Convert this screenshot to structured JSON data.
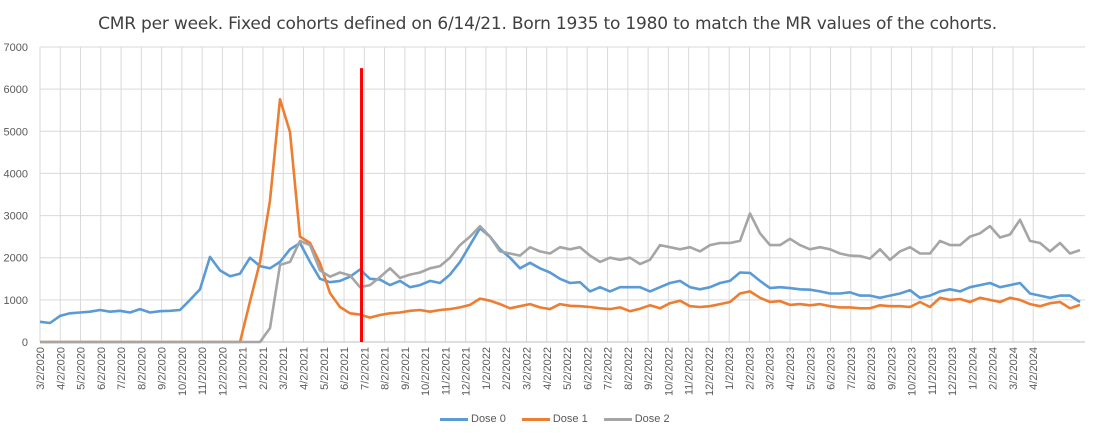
{
  "chart_data": {
    "type": "line",
    "title": "CMR per week. Fixed cohorts defined on 6/14/21. Born 1935 to 1980 to match the MR values of the cohorts.",
    "xlabel": "",
    "ylabel": "",
    "ylim": [
      0,
      7000
    ],
    "yticks": [
      0,
      1000,
      2000,
      3000,
      4000,
      5000,
      6000,
      7000
    ],
    "grid": true,
    "legend_position": "bottom",
    "x_unit": "weeks since 3/2/2020",
    "x_range_weeks": [
      0,
      224
    ],
    "weeks_per_label": 4.35,
    "x_tick_labels": [
      "3/2/2020",
      "4/2/2020",
      "5/2/2020",
      "6/2/2020",
      "7/2/2020",
      "8/2/2020",
      "9/2/2020",
      "10/2/2020",
      "11/2/2020",
      "12/2/2020",
      "1/2/2021",
      "2/2/2021",
      "3/2/2021",
      "4/2/2021",
      "5/2/2021",
      "6/2/2021",
      "7/2/2021",
      "8/2/2021",
      "9/2/2021",
      "10/2/2021",
      "11/2/2021",
      "12/2/2021",
      "1/2/2022",
      "2/2/2022",
      "3/2/2022",
      "4/2/2022",
      "5/2/2022",
      "6/2/2022",
      "7/2/2022",
      "8/2/2022",
      "9/2/2022",
      "10/2/2022",
      "11/2/2022",
      "12/2/2022",
      "1/2/2023",
      "2/2/2023",
      "3/2/2023",
      "4/2/2023",
      "5/2/2023",
      "6/2/2023",
      "7/2/2023",
      "8/2/2023",
      "9/2/2023",
      "10/2/2023",
      "11/2/2023",
      "12/2/2023",
      "1/2/2024",
      "2/2/2024",
      "3/2/2024",
      "4/2/2024"
    ],
    "x_week_step": 2.146,
    "annotation": {
      "type": "vertical-line",
      "week": 69,
      "value_top": 6500,
      "color": "#ff0000"
    },
    "series": [
      {
        "name": "Dose 0",
        "color": "#5b9bd5",
        "values": [
          480,
          450,
          620,
          680,
          700,
          720,
          760,
          720,
          740,
          700,
          780,
          700,
          730,
          740,
          760,
          1000,
          1250,
          2020,
          1700,
          1560,
          1620,
          2000,
          1800,
          1750,
          1900,
          2200,
          2350,
          1900,
          1500,
          1420,
          1450,
          1550,
          1720,
          1500,
          1480,
          1350,
          1450,
          1300,
          1350,
          1450,
          1400,
          1600,
          1900,
          2300,
          2700,
          2500,
          2200,
          2000,
          1750,
          1880,
          1750,
          1650,
          1500,
          1400,
          1420,
          1200,
          1300,
          1200,
          1300,
          1300,
          1300,
          1200,
          1300,
          1400,
          1450,
          1300,
          1250,
          1300,
          1400,
          1450,
          1650,
          1640,
          1450,
          1280,
          1300,
          1280,
          1250,
          1240,
          1200,
          1150,
          1150,
          1180,
          1100,
          1100,
          1050,
          1100,
          1150,
          1230,
          1050,
          1100,
          1200,
          1250,
          1200,
          1300,
          1350,
          1400,
          1300,
          1350,
          1400,
          1150,
          1100,
          1050,
          1100,
          1100,
          950
        ]
      },
      {
        "name": "Dose 1",
        "color": "#ed7d31",
        "values": [
          0,
          0,
          0,
          0,
          0,
          0,
          0,
          0,
          0,
          0,
          0,
          0,
          0,
          0,
          0,
          0,
          0,
          0,
          0,
          0,
          0,
          960,
          1900,
          3360,
          5760,
          4980,
          2500,
          2350,
          1870,
          1160,
          830,
          680,
          650,
          580,
          640,
          680,
          700,
          740,
          760,
          720,
          760,
          780,
          820,
          880,
          1030,
          980,
          900,
          800,
          850,
          900,
          820,
          780,
          900,
          860,
          850,
          830,
          800,
          780,
          820,
          730,
          790,
          870,
          800,
          920,
          980,
          850,
          830,
          850,
          900,
          950,
          1150,
          1200,
          1050,
          950,
          970,
          880,
          900,
          870,
          900,
          850,
          820,
          820,
          800,
          800,
          870,
          850,
          850,
          830,
          950,
          830,
          1050,
          1000,
          1020,
          950,
          1050,
          1000,
          950,
          1050,
          1000,
          900,
          850,
          920,
          950,
          800,
          880
        ]
      },
      {
        "name": "Dose 2",
        "color": "#a5a5a5",
        "values": [
          0,
          0,
          0,
          0,
          0,
          0,
          0,
          0,
          0,
          0,
          0,
          0,
          0,
          0,
          0,
          0,
          0,
          0,
          0,
          0,
          0,
          0,
          0,
          330,
          1830,
          1900,
          2400,
          2300,
          1700,
          1550,
          1650,
          1580,
          1300,
          1350,
          1540,
          1750,
          1520,
          1600,
          1650,
          1750,
          1800,
          2000,
          2300,
          2500,
          2750,
          2500,
          2150,
          2100,
          2050,
          2250,
          2150,
          2100,
          2250,
          2200,
          2250,
          2050,
          1900,
          2000,
          1950,
          2000,
          1850,
          1950,
          2300,
          2250,
          2200,
          2250,
          2150,
          2300,
          2350,
          2350,
          2400,
          3050,
          2580,
          2300,
          2300,
          2450,
          2300,
          2200,
          2250,
          2200,
          2100,
          2050,
          2040,
          1980,
          2200,
          1950,
          2150,
          2250,
          2100,
          2100,
          2400,
          2300,
          2300,
          2500,
          2580,
          2750,
          2480,
          2550,
          2900,
          2400,
          2350,
          2150,
          2350,
          2100,
          2180
        ]
      }
    ]
  }
}
